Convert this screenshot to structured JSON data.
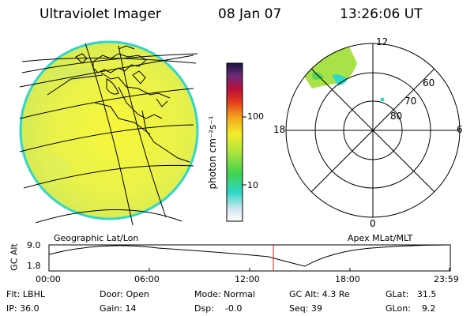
{
  "header": {
    "title": "Ultraviolet Imager",
    "date": "08 Jan 07",
    "time": "13:26:06 UT"
  },
  "colorbar": {
    "ticks": [
      "100",
      "10"
    ],
    "unit_label": "photon cm⁻²s⁻¹"
  },
  "geo_panel": {
    "label": "Geographic Lat/Lon"
  },
  "polar_panel": {
    "label": "Apex MLat/MLT",
    "mlt_labels": {
      "top": "12",
      "left": "18",
      "right": "6",
      "bottom": "0"
    },
    "lat_labels": [
      "60",
      "70",
      "80"
    ]
  },
  "altitude_plot": {
    "ylabel": "GC Alt",
    "yticks": [
      "9.0",
      "1.8"
    ],
    "xticks": [
      "00:00",
      "06:00",
      "12:00",
      "18:00",
      "23:59"
    ],
    "cursor_time": "13:26"
  },
  "status": {
    "flt": "Flt: LBHL",
    "ip": "IP: 36.0",
    "door": "Door: Open",
    "gain": "Gain: 14",
    "mode": "Mode: Normal",
    "dsp": "Dsp:    -0.0",
    "gcalt": "GC Alt: 4.3 Re",
    "seq": "Seq: 39",
    "glat": "GLat:   31.5",
    "glon": "GLon:    9.2"
  },
  "colors": {
    "background": "#ffffff",
    "disk_fill": "#eaf24a",
    "disk_edge": "#2fd7c9",
    "cursor": "#cc2222"
  }
}
